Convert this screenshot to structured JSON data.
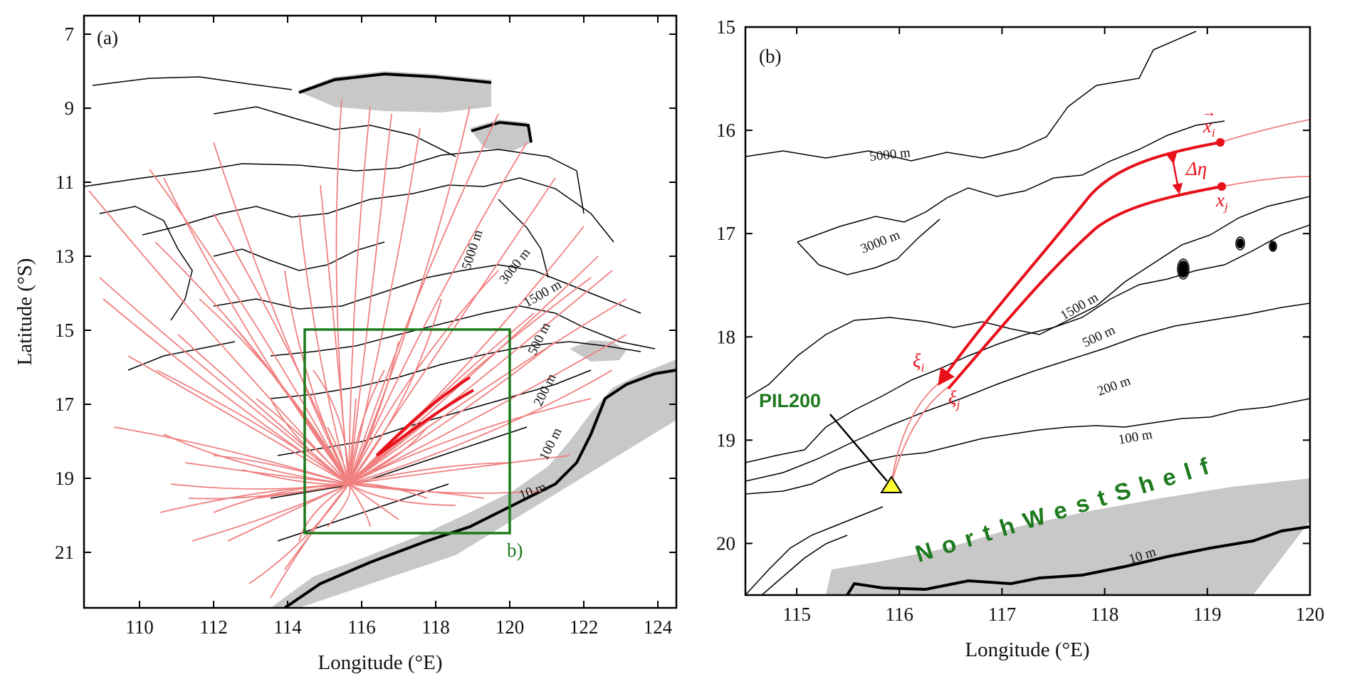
{
  "panel_a": {
    "label": "(a)",
    "x_ticks": [
      "110",
      "112",
      "114",
      "116",
      "118",
      "120",
      "122",
      "124"
    ],
    "y_ticks": [
      "7",
      "9",
      "11",
      "13",
      "15",
      "17",
      "19",
      "21"
    ],
    "xlabel": "Longitude (°E)",
    "ylabel": "Latitude (°S)",
    "box_label": "b)",
    "box_extent": {
      "lon": [
        114.5,
        120
      ],
      "lat": [
        15,
        20.5
      ]
    },
    "contour_labels": [
      "5000 m",
      "3000 m",
      "1500 m",
      "500 m",
      "200 m",
      "100 m",
      "10 m"
    ]
  },
  "panel_b": {
    "label": "(b)",
    "x_ticks": [
      "115",
      "116",
      "117",
      "118",
      "119",
      "120"
    ],
    "y_ticks": [
      "15",
      "16",
      "17",
      "18",
      "19",
      "20"
    ],
    "xlabel": "Longitude (°E)",
    "contour_labels": [
      "5000 m",
      "3000 m",
      "1500 m",
      "500 m",
      "200 m",
      "100 m",
      "10 m"
    ],
    "station": "PIL200",
    "shelf_label": "NorthWestShelf",
    "symbols": {
      "xi_vec": "x",
      "xi_sub": "i",
      "xj_vec": "x",
      "xj_sub": "j",
      "delta": "Δη",
      "xi_greek": "ξ",
      "xi_greek_sub": "i",
      "xj_greek": "ξ",
      "xj_greek_sub": "j"
    }
  },
  "colors": {
    "trajectory": "#f08080",
    "highlight": "#e8101a",
    "box": "#1e7a1e",
    "land": "#c8c8c8",
    "contour": "#000000",
    "station_marker": "#ffff33"
  }
}
